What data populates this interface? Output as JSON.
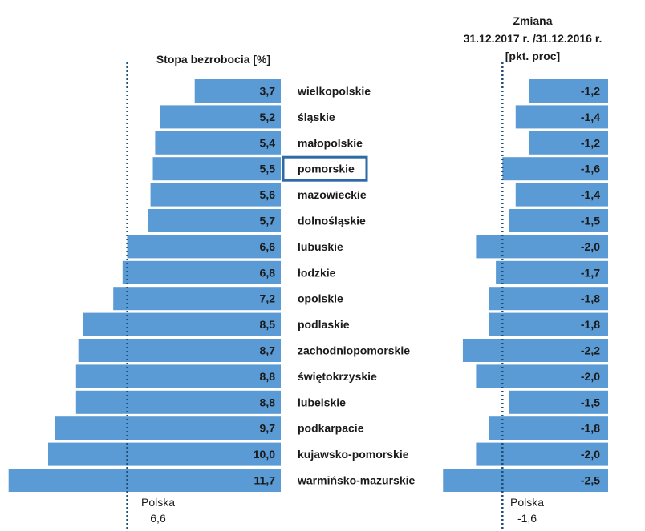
{
  "chart_data": [
    {
      "type": "bar",
      "orientation": "horizontal",
      "title": "Stopa bezrobocia [%]",
      "categories": [
        "wielkopolskie",
        "śląskie",
        "małopolskie",
        "pomorskie",
        "mazowieckie",
        "dolnośląskie",
        "lubuskie",
        "łodzkie",
        "opolskie",
        "podlaskie",
        "zachodniopomorskie",
        "świętokrzyskie",
        "lubelskie",
        "podkarpacie",
        "kujawsko-pomorskie",
        "warmińsko-mazurskie"
      ],
      "values": [
        3.7,
        5.2,
        5.4,
        5.5,
        5.6,
        5.7,
        6.6,
        6.8,
        7.2,
        8.5,
        8.7,
        8.8,
        8.8,
        9.7,
        10.0,
        11.7
      ],
      "value_labels": [
        "3,7",
        "5,2",
        "5,4",
        "5,5",
        "5,6",
        "5,7",
        "6,6",
        "6,8",
        "7,2",
        "8,5",
        "8,7",
        "8,8",
        "8,8",
        "9,7",
        "10,0",
        "11,7"
      ],
      "reference_line": {
        "label_line1": "Polska",
        "label_line2": "6,6",
        "value": 6.6
      },
      "highlighted_category": "pomorskie"
    },
    {
      "type": "bar",
      "orientation": "horizontal",
      "title_lines": [
        "Zmiana",
        "31.12.2017 r. /31.12.2016 r.",
        "[pkt. proc]"
      ],
      "categories": [
        "wielkopolskie",
        "śląskie",
        "małopolskie",
        "pomorskie",
        "mazowieckie",
        "dolnośląskie",
        "lubuskie",
        "łodzkie",
        "opolskie",
        "podlaskie",
        "zachodniopomorskie",
        "świętokrzyskie",
        "lubelskie",
        "podkarpacie",
        "kujawsko-pomorskie",
        "warmińsko-mazurskie"
      ],
      "values": [
        -1.2,
        -1.4,
        -1.2,
        -1.6,
        -1.4,
        -1.5,
        -2.0,
        -1.7,
        -1.8,
        -1.8,
        -2.2,
        -2.0,
        -1.5,
        -1.8,
        -2.0,
        -2.5
      ],
      "value_labels": [
        "-1,2",
        "-1,4",
        "-1,2",
        "-1,6",
        "-1,4",
        "-1,5",
        "-2,0",
        "-1,7",
        "-1,8",
        "-1,8",
        "-2,2",
        "-2,0",
        "-1,5",
        "-1,8",
        "-2,0",
        "-2,5"
      ],
      "reference_line": {
        "label_line1": "Polska",
        "label_line2": "-1,6",
        "value": -1.6
      }
    }
  ],
  "colors": {
    "bar": "#5b9bd5",
    "highlight_border": "#2e6aa6",
    "reference_line": "#1f4e79",
    "text": "#1a1a1a"
  }
}
